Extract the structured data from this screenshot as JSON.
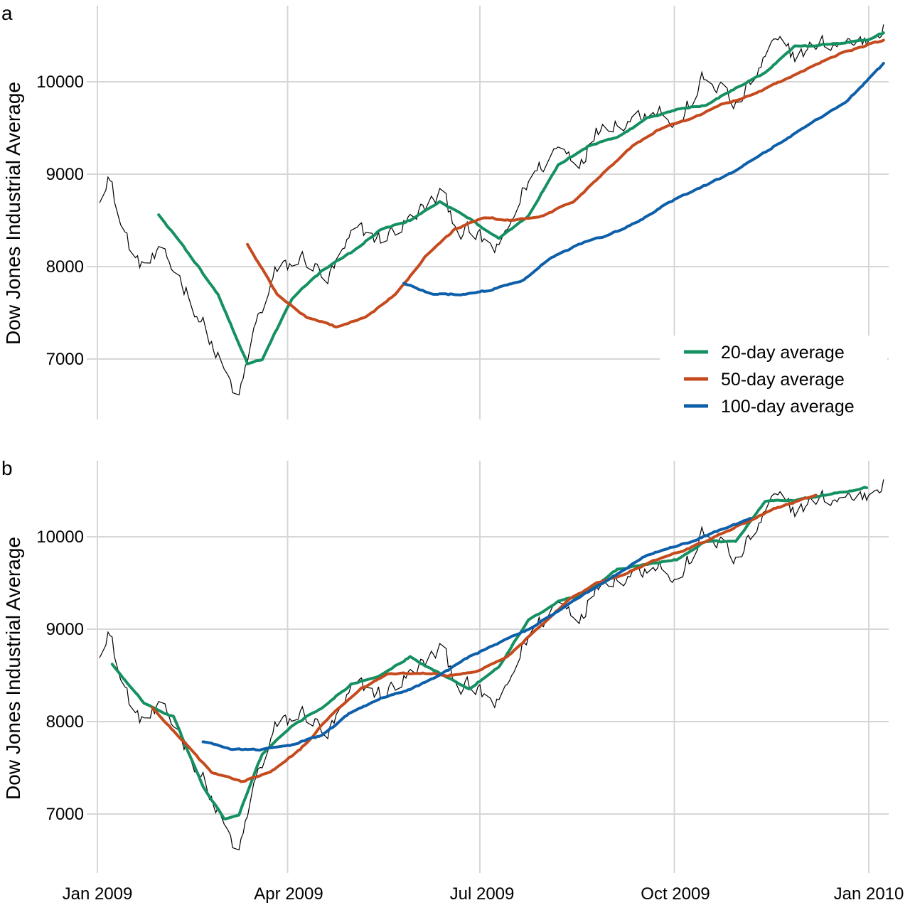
{
  "chart_data": [
    {
      "panel": "a",
      "type": "line",
      "ylabel": "Dow Jones Industrial Average",
      "x_ticks": [
        "Jan 2009",
        "Apr 2009",
        "Jul 2009",
        "Oct 2009",
        "Jan 2010"
      ],
      "y_ticks": [
        7000,
        8000,
        9000,
        10000
      ],
      "ylim": [
        6450,
        10800
      ],
      "alignment": "trailing (average plotted at end of window)",
      "legend": [
        "20-day average",
        "50-day average",
        "100-day average"
      ],
      "series": [
        {
          "name": "Dow Jones Industrial Average (daily close)",
          "color": "#000000",
          "keypoints": [
            [
              "2009-01-02",
              8780
            ],
            [
              "2009-01-06",
              9020
            ],
            [
              "2009-01-12",
              8470
            ],
            [
              "2009-01-20",
              8020
            ],
            [
              "2009-02-02",
              8100
            ],
            [
              "2009-02-10",
              7850
            ],
            [
              "2009-02-20",
              7370
            ],
            [
              "2009-03-02",
              6850
            ],
            [
              "2009-03-09",
              6550
            ],
            [
              "2009-03-16",
              7300
            ],
            [
              "2009-03-26",
              7920
            ],
            [
              "2009-04-09",
              8100
            ],
            [
              "2009-04-20",
              7850
            ],
            [
              "2009-05-04",
              8400
            ],
            [
              "2009-05-15",
              8300
            ],
            [
              "2009-05-29",
              8500
            ],
            [
              "2009-06-12",
              8780
            ],
            [
              "2009-06-22",
              8400
            ],
            [
              "2009-07-02",
              8280
            ],
            [
              "2009-07-10",
              8150
            ],
            [
              "2009-07-23",
              8900
            ],
            [
              "2009-08-07",
              9300
            ],
            [
              "2009-08-17",
              9150
            ],
            [
              "2009-08-28",
              9550
            ],
            [
              "2009-09-11",
              9600
            ],
            [
              "2009-09-23",
              9750
            ],
            [
              "2009-10-02",
              9480
            ],
            [
              "2009-10-14",
              10000
            ],
            [
              "2009-10-23",
              9950
            ],
            [
              "2009-10-30",
              9700
            ],
            [
              "2009-11-17",
              10400
            ],
            [
              "2009-11-27",
              10300
            ],
            [
              "2009-12-10",
              10400
            ],
            [
              "2009-12-31",
              10450
            ],
            [
              "2010-01-08",
              10620
            ]
          ]
        },
        {
          "name": "20-day average",
          "color": "#159061",
          "keypoints": [
            [
              "2009-01-30",
              8560
            ],
            [
              "2009-02-13",
              8150
            ],
            [
              "2009-02-27",
              7700
            ],
            [
              "2009-03-13",
              6950
            ],
            [
              "2009-03-20",
              7000
            ],
            [
              "2009-04-03",
              7650
            ],
            [
              "2009-04-17",
              7950
            ],
            [
              "2009-05-01",
              8150
            ],
            [
              "2009-05-15",
              8400
            ],
            [
              "2009-05-29",
              8500
            ],
            [
              "2009-06-12",
              8700
            ],
            [
              "2009-06-26",
              8520
            ],
            [
              "2009-07-10",
              8300
            ],
            [
              "2009-07-24",
              8550
            ],
            [
              "2009-08-07",
              9100
            ],
            [
              "2009-08-21",
              9300
            ],
            [
              "2009-09-04",
              9400
            ],
            [
              "2009-09-18",
              9600
            ],
            [
              "2009-10-02",
              9700
            ],
            [
              "2009-10-16",
              9750
            ],
            [
              "2009-10-30",
              9930
            ],
            [
              "2009-11-13",
              10100
            ],
            [
              "2009-11-27",
              10380
            ],
            [
              "2009-12-11",
              10400
            ],
            [
              "2009-12-31",
              10450
            ],
            [
              "2010-01-08",
              10530
            ]
          ]
        },
        {
          "name": "50-day average",
          "color": "#C54A1E",
          "keypoints": [
            [
              "2009-03-13",
              8240
            ],
            [
              "2009-03-27",
              7700
            ],
            [
              "2009-04-10",
              7450
            ],
            [
              "2009-04-24",
              7350
            ],
            [
              "2009-05-08",
              7450
            ],
            [
              "2009-05-22",
              7700
            ],
            [
              "2009-06-05",
              8100
            ],
            [
              "2009-06-19",
              8400
            ],
            [
              "2009-07-03",
              8530
            ],
            [
              "2009-07-17",
              8500
            ],
            [
              "2009-07-31",
              8550
            ],
            [
              "2009-08-14",
              8700
            ],
            [
              "2009-08-28",
              9000
            ],
            [
              "2009-09-11",
              9300
            ],
            [
              "2009-09-25",
              9500
            ],
            [
              "2009-10-09",
              9600
            ],
            [
              "2009-10-23",
              9750
            ],
            [
              "2009-11-06",
              9850
            ],
            [
              "2009-11-20",
              10000
            ],
            [
              "2009-12-04",
              10150
            ],
            [
              "2009-12-18",
              10300
            ],
            [
              "2010-01-08",
              10450
            ]
          ]
        },
        {
          "name": "100-day average",
          "color": "#0E5FAA",
          "keypoints": [
            [
              "2009-05-26",
              7820
            ],
            [
              "2009-06-09",
              7700
            ],
            [
              "2009-06-23",
              7700
            ],
            [
              "2009-07-07",
              7750
            ],
            [
              "2009-07-21",
              7850
            ],
            [
              "2009-08-04",
              8100
            ],
            [
              "2009-08-18",
              8250
            ],
            [
              "2009-09-01",
              8350
            ],
            [
              "2009-09-15",
              8500
            ],
            [
              "2009-09-29",
              8700
            ],
            [
              "2009-10-13",
              8850
            ],
            [
              "2009-10-27",
              9000
            ],
            [
              "2009-11-10",
              9200
            ],
            [
              "2009-11-24",
              9400
            ],
            [
              "2009-12-08",
              9600
            ],
            [
              "2009-12-22",
              9800
            ],
            [
              "2010-01-08",
              10200
            ]
          ]
        }
      ]
    },
    {
      "panel": "b",
      "type": "line",
      "ylabel": "Dow Jones Industrial Average",
      "x_ticks": [
        "Jan 2009",
        "Apr 2009",
        "Jul 2009",
        "Oct 2009",
        "Jan 2010"
      ],
      "y_ticks": [
        7000,
        8000,
        9000,
        10000
      ],
      "ylim": [
        6450,
        10800
      ],
      "alignment": "centered (average plotted at middle of window)",
      "series": [
        {
          "name": "Dow Jones Industrial Average (daily close)",
          "color": "#000000",
          "same_as_panel": "a"
        },
        {
          "name": "20-day average",
          "color": "#159061",
          "keypoints": [
            [
              "2009-01-08",
              8620
            ],
            [
              "2009-01-23",
              8200
            ],
            [
              "2009-02-06",
              8050
            ],
            [
              "2009-02-20",
              7300
            ],
            [
              "2009-03-02",
              6950
            ],
            [
              "2009-03-09",
              7000
            ],
            [
              "2009-03-20",
              7650
            ],
            [
              "2009-04-03",
              7950
            ],
            [
              "2009-04-17",
              8150
            ],
            [
              "2009-05-01",
              8400
            ],
            [
              "2009-05-15",
              8500
            ],
            [
              "2009-05-29",
              8700
            ],
            [
              "2009-06-12",
              8520
            ],
            [
              "2009-06-26",
              8350
            ],
            [
              "2009-07-10",
              8600
            ],
            [
              "2009-07-24",
              9100
            ],
            [
              "2009-08-07",
              9300
            ],
            [
              "2009-08-21",
              9400
            ],
            [
              "2009-09-04",
              9650
            ],
            [
              "2009-09-18",
              9700
            ],
            [
              "2009-10-02",
              9750
            ],
            [
              "2009-10-16",
              9950
            ],
            [
              "2009-10-30",
              9950
            ],
            [
              "2009-11-13",
              10380
            ],
            [
              "2009-11-27",
              10400
            ],
            [
              "2009-12-11",
              10450
            ],
            [
              "2009-12-31",
              10530
            ]
          ]
        },
        {
          "name": "50-day average",
          "color": "#C54A1E",
          "keypoints": [
            [
              "2009-01-27",
              8150
            ],
            [
              "2009-02-10",
              7800
            ],
            [
              "2009-02-24",
              7450
            ],
            [
              "2009-03-10",
              7350
            ],
            [
              "2009-03-24",
              7450
            ],
            [
              "2009-04-07",
              7700
            ],
            [
              "2009-04-21",
              8050
            ],
            [
              "2009-05-05",
              8350
            ],
            [
              "2009-05-19",
              8520
            ],
            [
              "2009-06-02",
              8530
            ],
            [
              "2009-06-16",
              8500
            ],
            [
              "2009-06-30",
              8550
            ],
            [
              "2009-07-14",
              8700
            ],
            [
              "2009-07-28",
              9000
            ],
            [
              "2009-08-11",
              9300
            ],
            [
              "2009-08-25",
              9500
            ],
            [
              "2009-09-08",
              9600
            ],
            [
              "2009-09-22",
              9750
            ],
            [
              "2009-10-06",
              9850
            ],
            [
              "2009-10-20",
              10000
            ],
            [
              "2009-11-03",
              10150
            ],
            [
              "2009-11-17",
              10300
            ],
            [
              "2009-12-07",
              10450
            ]
          ]
        },
        {
          "name": "100-day average",
          "color": "#0E5FAA",
          "keypoints": [
            [
              "2009-02-20",
              7780
            ],
            [
              "2009-03-06",
              7700
            ],
            [
              "2009-03-20",
              7700
            ],
            [
              "2009-04-03",
              7750
            ],
            [
              "2009-04-17",
              7850
            ],
            [
              "2009-05-01",
              8100
            ],
            [
              "2009-05-15",
              8250
            ],
            [
              "2009-05-29",
              8350
            ],
            [
              "2009-06-12",
              8500
            ],
            [
              "2009-06-26",
              8700
            ],
            [
              "2009-07-10",
              8850
            ],
            [
              "2009-07-24",
              9000
            ],
            [
              "2009-08-07",
              9200
            ],
            [
              "2009-08-21",
              9400
            ],
            [
              "2009-09-04",
              9600
            ],
            [
              "2009-09-18",
              9800
            ],
            [
              "2009-10-09",
              9950
            ],
            [
              "2009-11-06",
              10200
            ]
          ]
        }
      ]
    }
  ],
  "panel_a": {
    "label": "a",
    "ylabel": "Dow Jones Industrial Average"
  },
  "panel_b": {
    "label": "b",
    "ylabel": "Dow Jones Industrial Average"
  },
  "legend": {
    "items": [
      {
        "label": "20-day average",
        "color": "#159061"
      },
      {
        "label": "50-day average",
        "color": "#C54A1E"
      },
      {
        "label": "100-day average",
        "color": "#0E5FAA"
      }
    ]
  },
  "axes": {
    "x_ticks": [
      "Jan 2009",
      "Apr 2009",
      "Jul 2009",
      "Oct 2009",
      "Jan 2010"
    ],
    "y_ticks": [
      "7000",
      "8000",
      "9000",
      "10000"
    ]
  }
}
